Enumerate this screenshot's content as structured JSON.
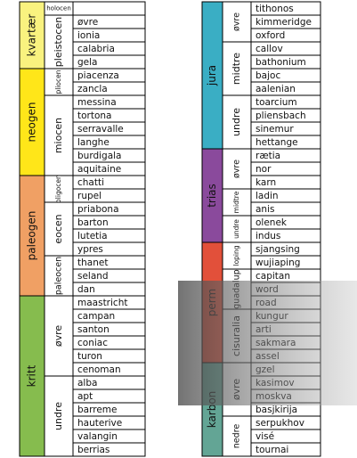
{
  "columns": [
    {
      "periods": [
        {
          "name": "kvartær",
          "color": "#f9f27f",
          "epochs": [
            {
              "name": "holocen",
              "stages": []
            },
            {
              "name": "pleistocen",
              "stages": [
                "øvre",
                "ionia",
                "calabria",
                "gela"
              ]
            }
          ]
        },
        {
          "name": "neogen",
          "color": "#ffe619",
          "epochs": [
            {
              "name": "pliocen",
              "stages": [
                "piacenza",
                "zancla"
              ]
            },
            {
              "name": "miocen",
              "stages": [
                "messina",
                "tortona",
                "serravalle",
                "langhe",
                "burdigala",
                "aquitaine"
              ]
            }
          ]
        },
        {
          "name": "paleogen",
          "color": "#f0a064",
          "epochs": [
            {
              "name": "oligocen",
              "stages": [
                "chatti",
                "rupel"
              ]
            },
            {
              "name": "eocen",
              "stages": [
                "priabona",
                "barton",
                "lutetia",
                "ypres"
              ]
            },
            {
              "name": "paleocen",
              "stages": [
                "thanet",
                "seland",
                "dan"
              ]
            }
          ]
        },
        {
          "name": "kritt",
          "color": "#86bc4e",
          "epochs": [
            {
              "name": "øvre",
              "stages": [
                "maastricht",
                "campan",
                "santon",
                "coniac",
                "turon",
                "cenoman"
              ]
            },
            {
              "name": "undre",
              "stages": [
                "alba",
                "apt",
                "barreme",
                "hauterive",
                "valangin",
                "berrias"
              ]
            }
          ]
        }
      ]
    },
    {
      "periods": [
        {
          "name": "jura",
          "color": "#3aaec4",
          "epochs": [
            {
              "name": "øvre",
              "stages": [
                "tithonos",
                "kimmeridge",
                "oxford"
              ]
            },
            {
              "name": "midtre",
              "stages": [
                "callov",
                "bathonium",
                "bajoc",
                "aalenian"
              ]
            },
            {
              "name": "undre",
              "stages": [
                "toarcium",
                "pliensbach",
                "sinemur",
                "hettange"
              ]
            }
          ]
        },
        {
          "name": "trias",
          "color": "#8a4a9c",
          "epochs": [
            {
              "name": "øvre",
              "stages": [
                "rætia",
                "nor",
                "karn"
              ]
            },
            {
              "name": "midtre",
              "stages": [
                "ladin",
                "anis"
              ]
            },
            {
              "name": "undre",
              "stages": [
                "olenek",
                "indus"
              ]
            }
          ]
        },
        {
          "name": "perm",
          "color": "#e2503a",
          "epochs": [
            {
              "name": "loping",
              "stages": [
                "sjangsing",
                "wujiaping"
              ]
            },
            {
              "name": "guadalup",
              "stages": [
                "capitan",
                "word",
                "road"
              ]
            },
            {
              "name": "cisuralia",
              "stages": [
                "kungur",
                "arti",
                "sakmara",
                "assel"
              ]
            }
          ]
        },
        {
          "name": "karbon",
          "color": "#63a595",
          "epochs": [
            {
              "name": "øvre",
              "stages": [
                "gzel",
                "kasimov",
                "moskva",
                "basjkirija"
              ]
            },
            {
              "name": "nedre",
              "stages": [
                "serpukhov",
                "visé",
                "tournai"
              ]
            }
          ]
        }
      ]
    }
  ]
}
